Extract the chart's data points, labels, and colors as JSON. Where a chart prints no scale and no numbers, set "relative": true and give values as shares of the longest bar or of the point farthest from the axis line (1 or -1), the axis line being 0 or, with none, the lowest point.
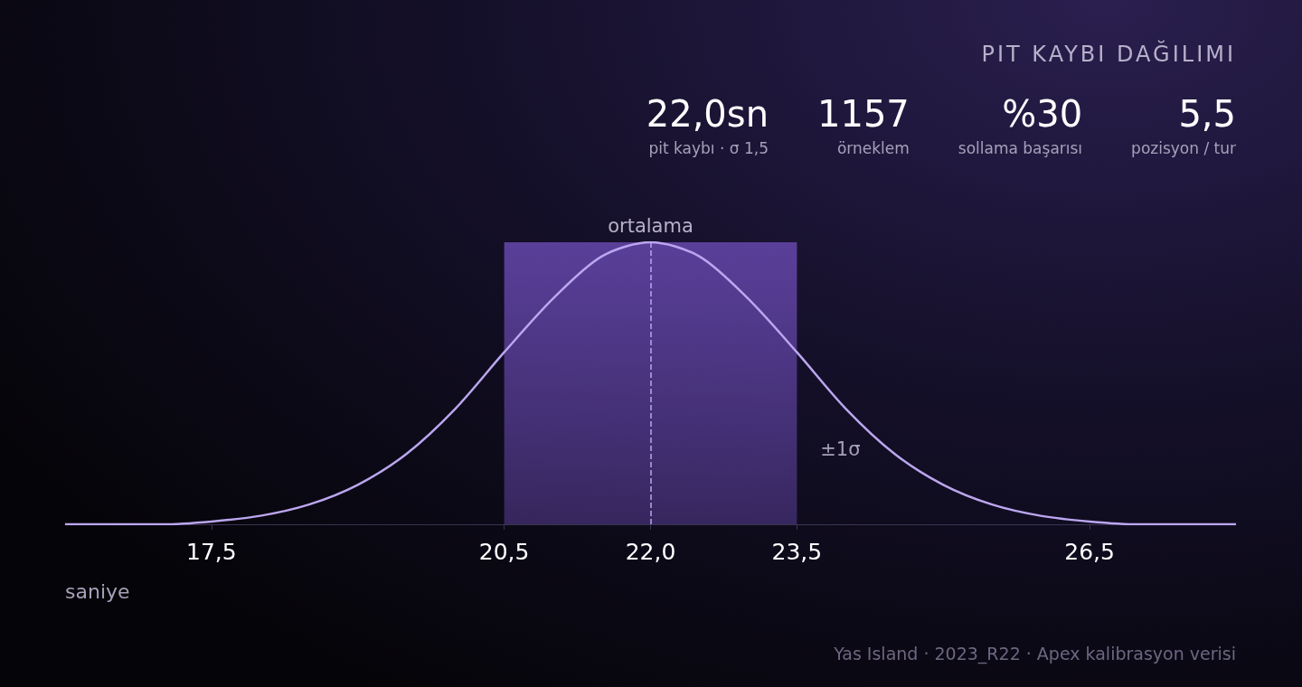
{
  "chart_data": {
    "type": "line",
    "title": "PIT KAYBI DAĞILIMI",
    "xlabel": "saniye",
    "relative": true,
    "x": [
      16,
      16.5,
      17,
      17.5,
      18,
      18.5,
      19,
      19.5,
      20,
      20.5,
      21,
      21.5,
      22,
      22.5,
      23,
      23.5,
      24,
      24.5,
      25,
      25.5,
      26,
      26.5,
      27,
      27.5,
      28
    ],
    "series": [
      {
        "color": "#bba6ef",
        "values": [
          0,
          0,
          0,
          0.01,
          0.03,
          0.07,
          0.14,
          0.25,
          0.41,
          0.61,
          0.8,
          0.95,
          1,
          0.95,
          0.8,
          0.61,
          0.41,
          0.25,
          0.14,
          0.07,
          0.03,
          0.01,
          0,
          0,
          0
        ]
      }
    ],
    "xlim": [
      16,
      28
    ],
    "xticks": [
      {
        "value": 17.5,
        "label": "17,5"
      },
      {
        "value": 20.5,
        "label": "20,5"
      },
      {
        "value": 22,
        "label": "22,0"
      },
      {
        "value": 23.5,
        "label": "23,5"
      },
      {
        "value": 26.5,
        "label": "26,5"
      }
    ],
    "ref_lines": [
      {
        "axis": "x",
        "value": 22,
        "label": "ortalama",
        "line_style": "dashed",
        "color": "#bba6ef"
      }
    ],
    "bands": [
      {
        "axis": "x",
        "from": 20.5,
        "to": 23.5,
        "label": "±1σ",
        "color": "#5a3f99"
      }
    ],
    "annotations": [
      "22,0sn",
      "pit kaybı · σ 1,5",
      "1157",
      "örneklem",
      "%30",
      "sollama başarısı",
      "5,5",
      "pozisyon / tur",
      "Yas Island · 2023_R22 · Apex kalibrasyon verisi"
    ],
    "grid": false,
    "marker": "none",
    "line_style": "solid"
  }
}
